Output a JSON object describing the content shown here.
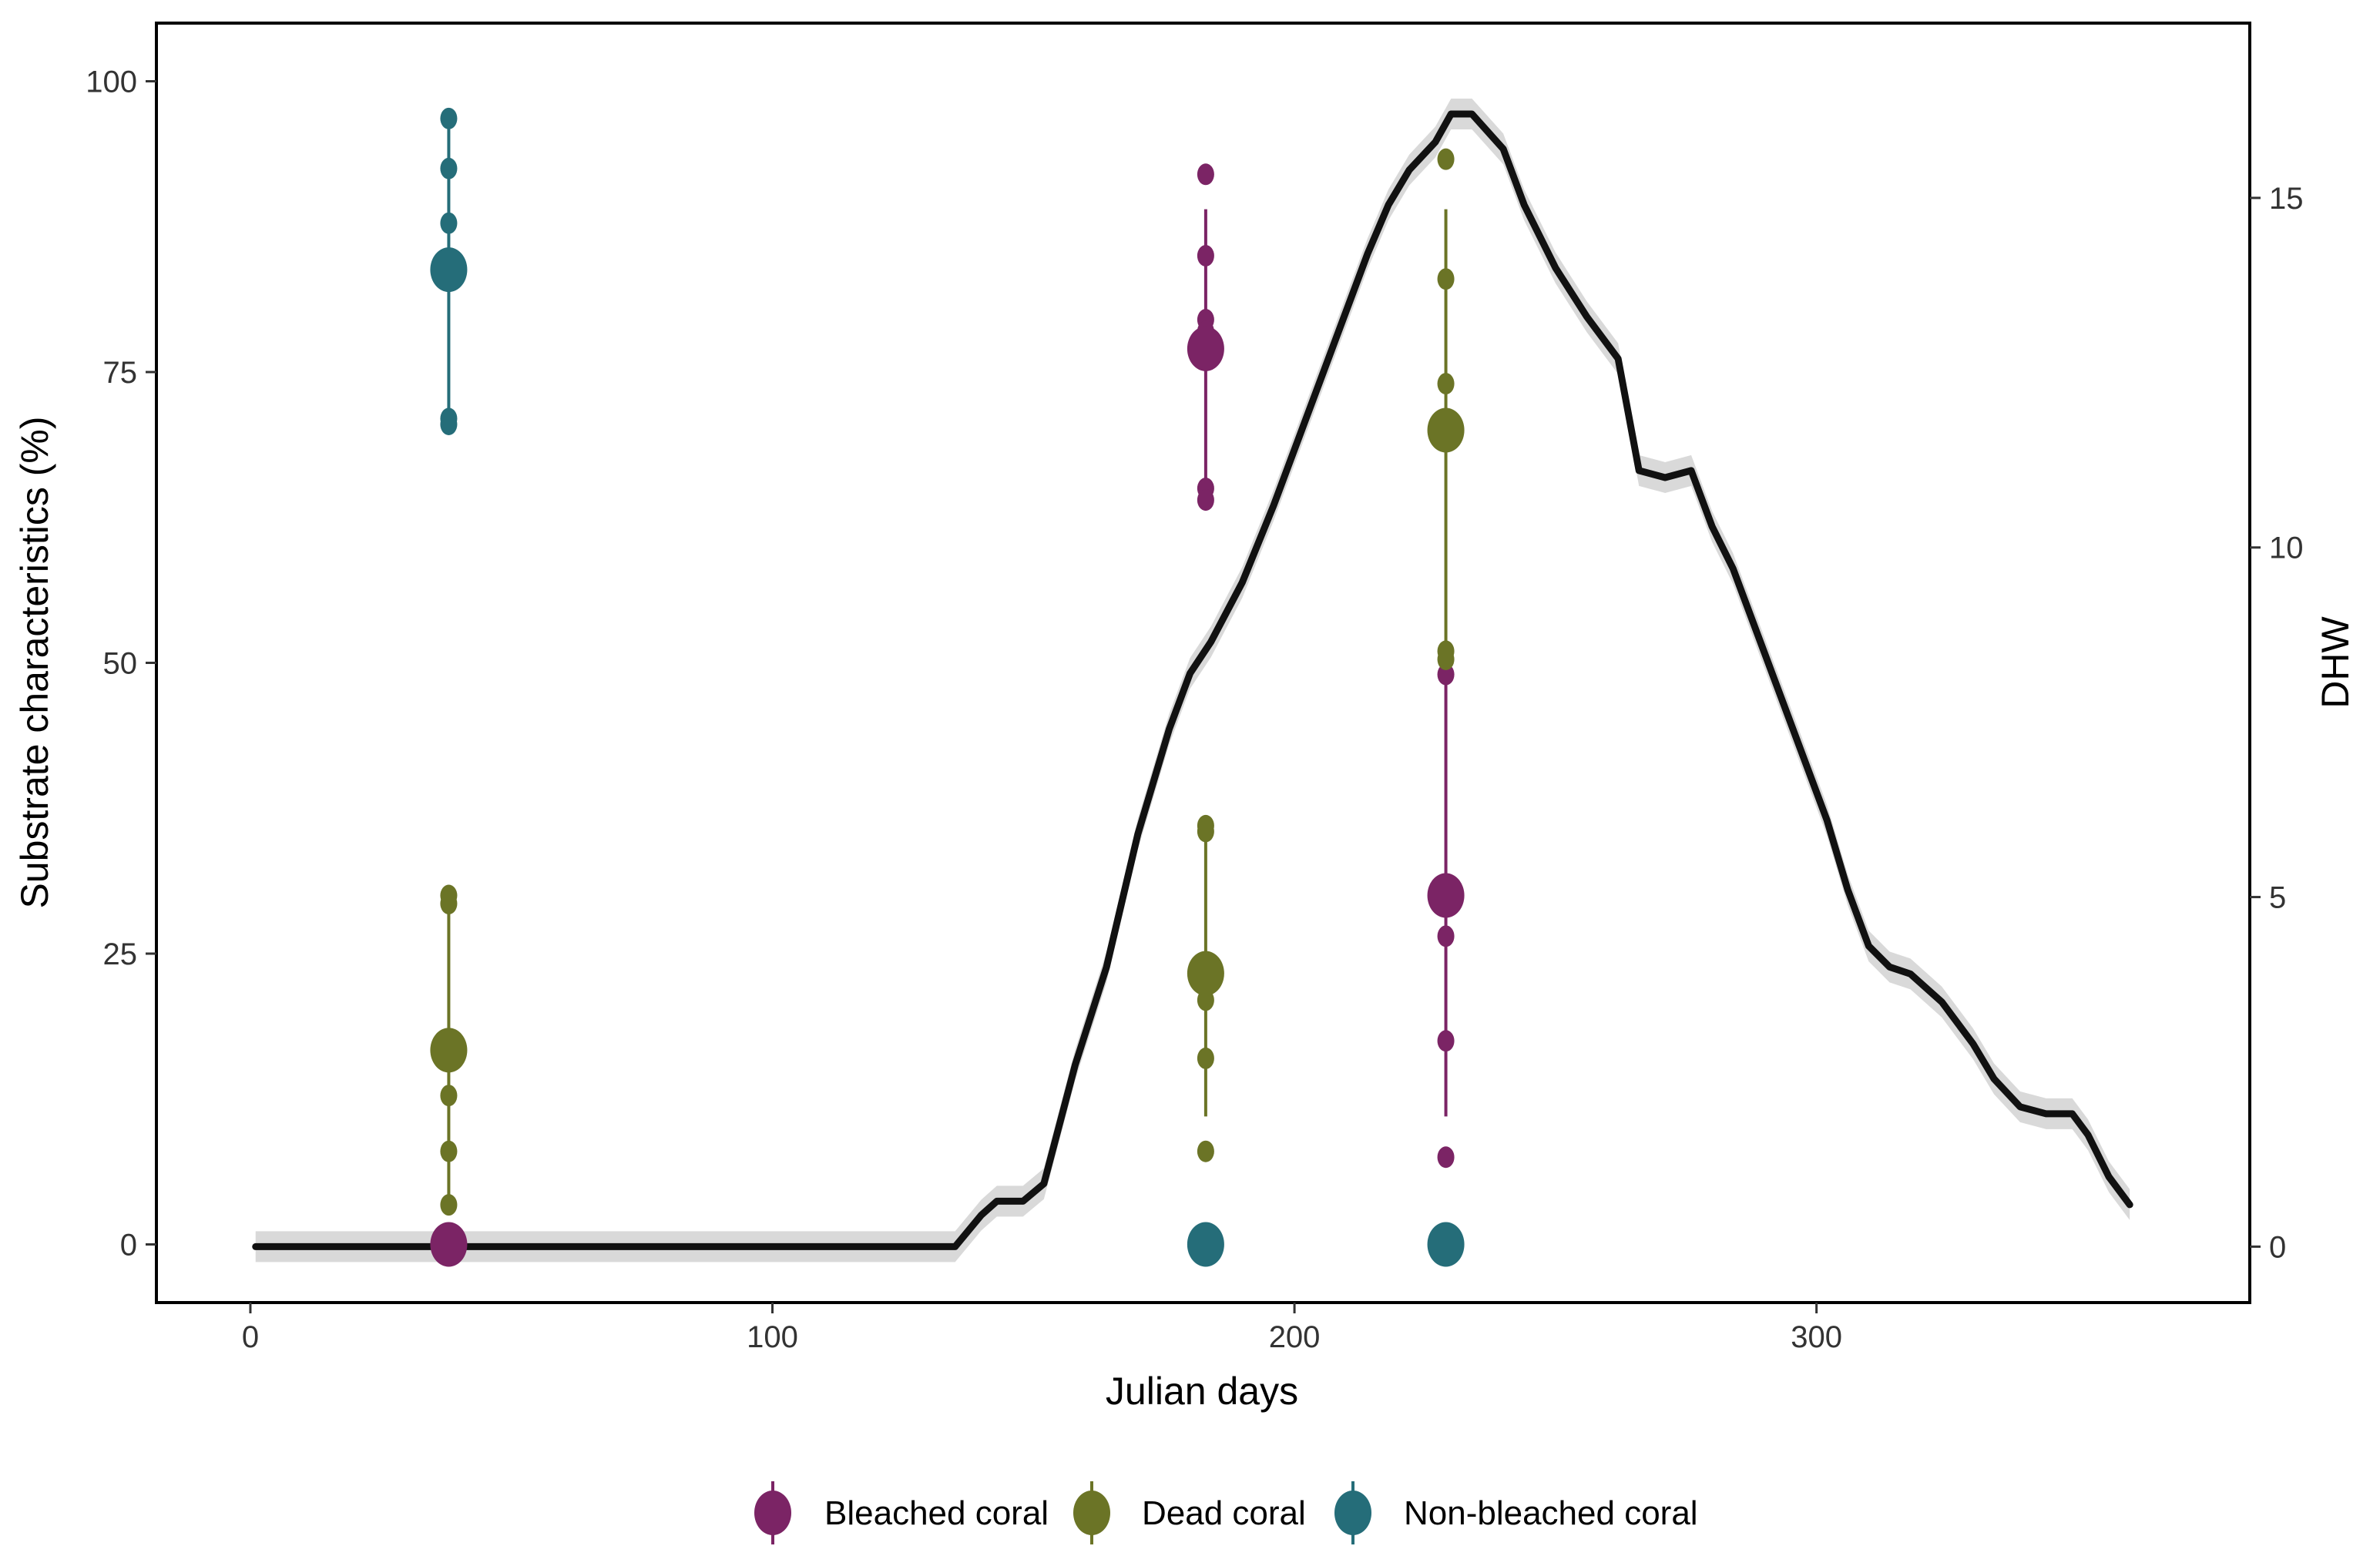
{
  "chart_data": {
    "type": "line+pointrange",
    "xlabel": "Julian days",
    "ylabel": "Substrate characteristics (%)",
    "y2label": "DHW",
    "xlim": [
      -18,
      383
    ],
    "ylim": [
      -5,
      105
    ],
    "y2lim": [
      -0.8,
      17.5
    ],
    "x_ticks": [
      0,
      100,
      200,
      300
    ],
    "y_ticks": [
      0,
      25,
      50,
      75,
      100
    ],
    "y2_ticks": [
      0,
      5,
      10,
      15
    ],
    "x_tick_labels": [
      "0",
      "100",
      "200",
      "300"
    ],
    "y_tick_labels": [
      "0",
      "25",
      "50",
      "75",
      "100"
    ],
    "y2_tick_labels": [
      "0",
      "5",
      "10",
      "15"
    ],
    "dhw_line": {
      "name": "DHW",
      "color": "#111111",
      "ribbon_color": "#d9d9d9",
      "x": [
        1,
        30,
        60,
        100,
        135,
        140,
        143,
        148,
        152,
        158,
        164,
        170,
        176,
        180,
        184,
        190,
        196,
        202,
        208,
        214,
        218,
        222,
        227,
        230,
        234,
        240,
        244,
        250,
        256,
        262,
        266,
        271,
        276,
        280,
        284,
        290,
        296,
        302,
        306,
        310,
        314,
        318,
        324,
        330,
        334,
        339,
        344,
        349,
        352,
        356,
        360
      ],
      "y": [
        0,
        0,
        0,
        0,
        0,
        0.45,
        0.65,
        0.65,
        0.9,
        2.6,
        4.0,
        5.9,
        7.4,
        8.2,
        8.65,
        9.5,
        10.6,
        11.8,
        13.0,
        14.2,
        14.9,
        15.4,
        15.8,
        16.2,
        16.2,
        15.7,
        14.9,
        14.0,
        13.3,
        12.7,
        11.1,
        11.0,
        11.1,
        10.3,
        9.7,
        8.5,
        7.3,
        6.1,
        5.1,
        4.3,
        4.0,
        3.9,
        3.5,
        2.9,
        2.4,
        2.0,
        1.9,
        1.9,
        1.6,
        1.0,
        0.6
      ]
    },
    "series": [
      {
        "name": "Bleached coral",
        "color": "#7b2465",
        "groups": [
          {
            "x": 38,
            "mean": 0,
            "low": 0,
            "high": 0,
            "points": [
              0
            ]
          },
          {
            "x": 183,
            "mean": 77,
            "low": 64,
            "high": 89,
            "points": [
              92,
              85,
              79.5,
              78.5,
              65,
              64
            ]
          },
          {
            "x": 229,
            "mean": 30,
            "low": 11,
            "high": 49,
            "points": [
              49,
              26.5,
              17.5,
              7.5
            ]
          }
        ]
      },
      {
        "name": "Dead coral",
        "color": "#6b7426",
        "groups": [
          {
            "x": 38,
            "mean": 16.7,
            "low": 3.4,
            "high": 30,
            "points": [
              30,
              29.3,
              12.8,
              8,
              3.4
            ]
          },
          {
            "x": 183,
            "mean": 23.3,
            "low": 11,
            "high": 35,
            "points": [
              36,
              35.5,
              21,
              16,
              8
            ]
          },
          {
            "x": 229,
            "mean": 70,
            "low": 51,
            "high": 89,
            "points": [
              93.3,
              83,
              74,
              51,
              50.3
            ]
          }
        ]
      },
      {
        "name": "Non-bleached coral",
        "color": "#256d79",
        "groups": [
          {
            "x": 38,
            "mean": 83.8,
            "low": 70.5,
            "high": 96.8,
            "points": [
              96.8,
              92.5,
              87.8,
              71,
              70.5
            ]
          },
          {
            "x": 183,
            "mean": 0,
            "low": 0,
            "high": 0,
            "points": [
              0
            ]
          },
          {
            "x": 229,
            "mean": 0,
            "low": 0,
            "high": 0,
            "points": [
              0
            ]
          }
        ]
      }
    ],
    "legend": {
      "position": "bottom",
      "entries": [
        "Bleached coral",
        "Dead coral",
        "Non-bleached coral"
      ]
    }
  }
}
